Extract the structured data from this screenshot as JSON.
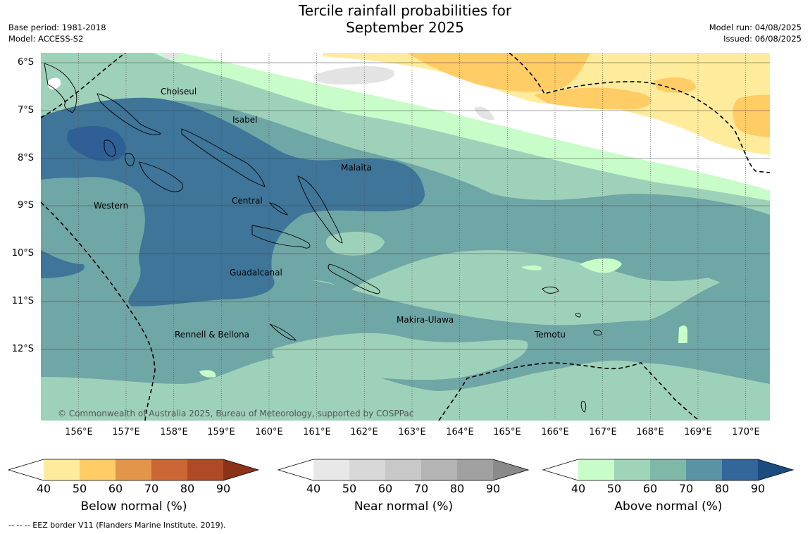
{
  "title_line1": "Tercile rainfall probabilities for",
  "title_line2": "September 2025",
  "meta_left": {
    "base_period": "Base period: 1981-2018",
    "model": "Model: ACCESS-S2"
  },
  "meta_right": {
    "model_run": "Model run: 04/08/2025",
    "issued": "Issued: 06/08/2025"
  },
  "lat_labels": [
    "6°S",
    "7°S",
    "8°S",
    "9°S",
    "10°S",
    "11°S",
    "12°S"
  ],
  "lon_labels": [
    "156°E",
    "157°E",
    "158°E",
    "159°E",
    "160°E",
    "161°E",
    "162°E",
    "163°E",
    "164°E",
    "165°E",
    "166°E",
    "167°E",
    "168°E",
    "169°E",
    "170°E"
  ],
  "regions": {
    "choiseul": "Choiseul",
    "isabel": "Isabel",
    "malaita": "Malaita",
    "western": "Western",
    "central": "Central",
    "guadalcanal": "Guadalcanal",
    "makira": "Makira-Ulawa",
    "temotu": "Temotu",
    "rennell": "Rennell & Bellona"
  },
  "copyright": "© Commonwealth of Australia 2025, Bureau of Meteorology, supported by COSPPac",
  "colorbars": {
    "below": {
      "label": "Below normal (%)",
      "ticks": [
        "40",
        "50",
        "60",
        "70",
        "80",
        "90"
      ],
      "colors": [
        "#ffffff",
        "#ffeb9c",
        "#ffcc66",
        "#e3954a",
        "#cc6634",
        "#b04a26",
        "#8c3219"
      ]
    },
    "near": {
      "label": "Near normal (%)",
      "ticks": [
        "40",
        "50",
        "60",
        "70",
        "80",
        "90"
      ],
      "colors": [
        "#ffffff",
        "#e8e8e8",
        "#d8d8d8",
        "#c8c8c8",
        "#b4b4b4",
        "#a0a0a0",
        "#8a8a8a"
      ]
    },
    "above": {
      "label": "Above normal (%)",
      "ticks": [
        "40",
        "50",
        "60",
        "70",
        "80",
        "90"
      ],
      "colors": [
        "#ffffff",
        "#c8fcc8",
        "#a0d4b8",
        "#80b8a8",
        "#5a94a4",
        "#336699",
        "#1a4c80"
      ]
    }
  },
  "map_colors": {
    "c40": "#ffffff",
    "c50": "#c8fcc8",
    "c60": "#9ed1b9",
    "c70": "#6fa6a6",
    "c80": "#3e7598",
    "c90": "#2e5f96",
    "b50": "#ffeb9c",
    "b60": "#ffcc66",
    "n50": "#e3e3e3"
  },
  "footer": "--  --  -- EEZ border V11 (Flanders Marine Institute, 2019)."
}
